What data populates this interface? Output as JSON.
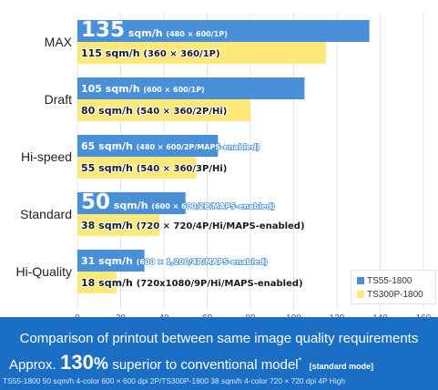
{
  "chart_data": {
    "type": "bar",
    "orientation": "horizontal",
    "categories": [
      "MAX",
      "Draft",
      "Hi-speed",
      "Standard",
      "Hi-Quality"
    ],
    "series": [
      {
        "name": "TS55-1800",
        "color": "#4a90d9",
        "values": [
          135,
          105,
          65,
          50,
          31
        ],
        "labels": [
          {
            "value": "135",
            "unit": "sqm/h",
            "spec": "(480 × 600/1P)"
          },
          {
            "value": "105",
            "unit": "sqm/h",
            "spec": "(600 × 600/1P)"
          },
          {
            "value": "65",
            "unit": "sqm/h",
            "spec": "(480 × 600/2P/MAPS-enabled)"
          },
          {
            "value": "50",
            "unit": "sqm/h",
            "spec": "(600 × 600/2P/MAPS-enabled)"
          },
          {
            "value": "31",
            "unit": "sqm/h",
            "spec": "(600 × 1,200/4P/MAPS-enabled)"
          }
        ]
      },
      {
        "name": "TS300P-1800",
        "color": "#fde97a",
        "values": [
          115,
          80,
          55,
          38,
          18
        ],
        "labels": [
          {
            "value": "115",
            "unit": "sqm/h",
            "spec": "(360 × 360/1P)"
          },
          {
            "value": "80",
            "unit": "sqm/h",
            "spec": "(540 × 360/2P/Hi)"
          },
          {
            "value": "55",
            "unit": "sqm/h",
            "spec": "(540 × 360/3P/Hi)"
          },
          {
            "value": "38",
            "unit": "sqm/h",
            "spec": "(720 × 720/4P/Hi/MAPS-enabled)"
          },
          {
            "value": "18",
            "unit": "sqm/h",
            "spec": "(720x1080/9P/Hi/MAPS-enabled)"
          }
        ]
      }
    ],
    "xlim": [
      0,
      160
    ],
    "xticks": [
      "0",
      "20",
      "40",
      "60",
      "80",
      "100",
      "120",
      "140",
      "160"
    ],
    "grid": true,
    "legend_position": "bottom-right"
  },
  "legend": {
    "items": [
      {
        "label": "TS55-1800",
        "color": "#4a90d9"
      },
      {
        "label": "TS300P-1800",
        "color": "#fde97a"
      }
    ]
  },
  "footer": {
    "title": "Comparison of printout between same image quality requirements",
    "claim_prefix": "Approx.",
    "claim_percent": "130",
    "claim_percent_sign": "%",
    "claim_suffix": "superior to conventional model",
    "claim_asterisk": "*",
    "claim_mode": "[standard mode]",
    "note": "TS55-1800 50 sqm/h 4-color 600 × 600 dpi 2P/TS300P-1800 38 sqm/h 4-color 720 × 720 dpi 4P High"
  },
  "colors": {
    "blue": "#4a90d9",
    "yellow": "#fde97a",
    "footer_bg": "#1a6fc4"
  }
}
